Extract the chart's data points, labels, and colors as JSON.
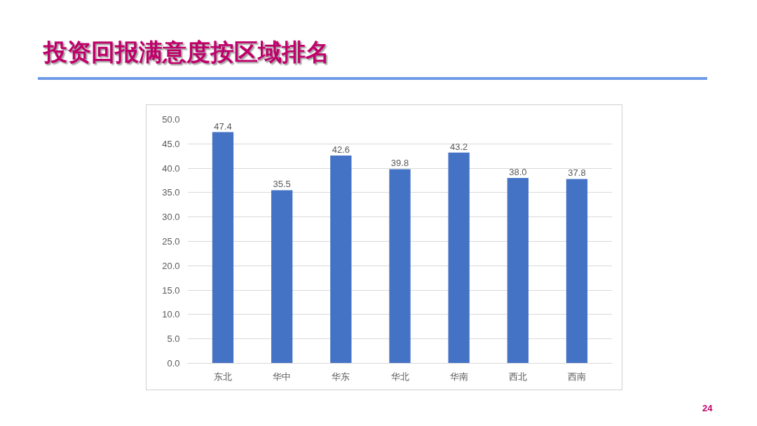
{
  "chart_data": {
    "type": "bar",
    "title": "投资回报满意度按区域排名",
    "categories": [
      "东北",
      "华中",
      "华东",
      "华北",
      "华南",
      "西北",
      "西南"
    ],
    "values": [
      47.4,
      35.5,
      42.6,
      39.8,
      43.2,
      38.0,
      37.8
    ],
    "value_labels": [
      "47.4",
      "35.5",
      "42.6",
      "39.8",
      "43.2",
      "38.0",
      "37.8"
    ],
    "color": "#4472c4",
    "ylim": [
      0,
      50
    ],
    "yticks": [
      {
        "value": 0,
        "label": "0.0"
      },
      {
        "value": 5,
        "label": "5.0"
      },
      {
        "value": 10,
        "label": "10.0"
      },
      {
        "value": 15,
        "label": "15.0"
      },
      {
        "value": 20,
        "label": "20.0"
      },
      {
        "value": 25,
        "label": "25.0"
      },
      {
        "value": 30,
        "label": "30.0"
      },
      {
        "value": 35,
        "label": "35.0"
      },
      {
        "value": 40,
        "label": "40.0"
      },
      {
        "value": 45,
        "label": "45.0"
      },
      {
        "value": 50,
        "label": "50.0"
      }
    ],
    "grid": "y",
    "annotations": [
      "24"
    ]
  }
}
